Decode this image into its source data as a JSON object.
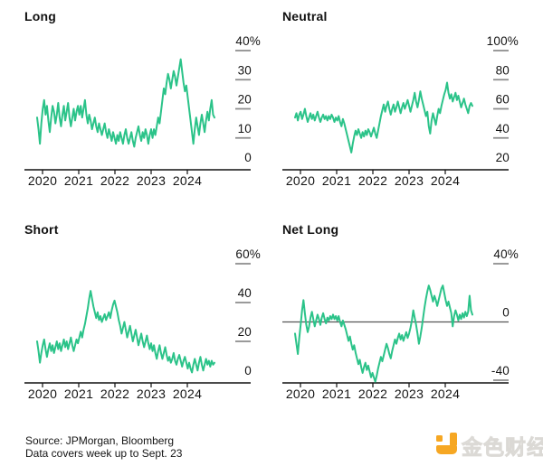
{
  "colors": {
    "line": "#2bc389",
    "axis": "#111111",
    "tick_dash": "#8c8c8c",
    "label": "#141414",
    "zero_line": "#555555",
    "logo_orange": "#F6A723",
    "logo_text_gray": "#ebe9e5",
    "background": "#ffffff"
  },
  "footer": {
    "line1": "Source: JPMorgan, Bloomberg",
    "line2": "Data covers week up to Sept. 23"
  },
  "logo": {
    "text": "金色财经",
    "icon": "jinse-blocks-icon"
  },
  "chart_data": [
    {
      "type": "line",
      "title": "Long",
      "x_tick_labels": [
        "2020",
        "2021",
        "2022",
        "2023",
        "2024"
      ],
      "x_range": [
        "Oct 2019",
        "Sep 2024"
      ],
      "y_tick_labels": [
        "40%",
        "30",
        "20",
        "10",
        "0"
      ],
      "y_tick_values": [
        40,
        30,
        20,
        10,
        0
      ],
      "y_tick_dashes": [
        true,
        true,
        true,
        true,
        false
      ],
      "ylim": [
        0,
        40
      ],
      "zero_line": false,
      "grid": false,
      "legend": "none",
      "values": [
        17,
        13,
        8,
        15,
        20,
        23,
        18,
        21,
        16,
        12,
        17,
        21,
        19,
        15,
        18,
        22,
        17,
        14,
        18,
        21,
        16,
        19,
        22,
        17,
        14,
        17,
        20,
        16,
        19,
        21,
        18,
        21,
        17,
        20,
        23,
        18,
        15,
        18,
        16,
        13,
        15,
        17,
        14,
        12,
        15,
        13,
        11,
        13,
        15,
        12,
        10,
        13,
        11,
        9,
        12,
        10,
        8,
        11,
        9,
        12,
        10,
        8,
        11,
        13,
        10,
        8,
        10,
        12,
        9,
        7,
        10,
        12,
        14,
        11,
        9,
        12,
        10,
        13,
        11,
        8,
        11,
        13,
        10,
        13,
        11,
        14,
        17,
        15,
        19,
        23,
        27,
        25,
        29,
        32,
        30,
        27,
        30,
        33,
        31,
        28,
        31,
        34,
        37,
        33,
        29,
        26,
        28,
        24,
        20,
        16,
        12,
        8,
        13,
        17,
        14,
        11,
        15,
        18,
        15,
        12,
        16,
        19,
        16,
        20,
        23,
        18,
        17
      ]
    },
    {
      "type": "line",
      "title": "Neutral",
      "x_tick_labels": [
        "2020",
        "2021",
        "2022",
        "2023",
        "2024"
      ],
      "x_range": [
        "Oct 2019",
        "Sep 2024"
      ],
      "y_tick_labels": [
        "100%",
        "80",
        "60",
        "40",
        "20"
      ],
      "y_tick_values": [
        100,
        80,
        60,
        40,
        20
      ],
      "y_tick_dashes": [
        true,
        true,
        true,
        true,
        false
      ],
      "ylim": [
        20,
        100
      ],
      "zero_line": false,
      "grid": false,
      "legend": "none",
      "values": [
        54,
        57,
        52,
        56,
        58,
        53,
        56,
        60,
        55,
        51,
        54,
        57,
        53,
        56,
        52,
        55,
        58,
        54,
        51,
        54,
        56,
        53,
        55,
        52,
        55,
        53,
        56,
        54,
        51,
        54,
        52,
        55,
        51,
        48,
        53,
        50,
        46,
        42,
        38,
        34,
        30,
        36,
        41,
        45,
        42,
        46,
        43,
        40,
        44,
        41,
        45,
        42,
        46,
        44,
        41,
        44,
        47,
        43,
        40,
        45,
        50,
        55,
        59,
        63,
        58,
        62,
        65,
        60,
        56,
        60,
        63,
        58,
        61,
        65,
        61,
        57,
        61,
        64,
        60,
        63,
        66,
        62,
        58,
        62,
        66,
        71,
        65,
        61,
        66,
        72,
        67,
        63,
        59,
        55,
        58,
        48,
        43,
        52,
        57,
        53,
        49,
        55,
        60,
        57,
        62,
        66,
        70,
        73,
        78,
        71,
        67,
        70,
        65,
        68,
        71,
        66,
        69,
        65,
        61,
        64,
        67,
        63,
        60,
        57,
        62,
        64,
        62
      ]
    },
    {
      "type": "line",
      "title": "Short",
      "x_tick_labels": [
        "2020",
        "2021",
        "2022",
        "2023",
        "2024"
      ],
      "x_range": [
        "Oct 2019",
        "Sep 2024"
      ],
      "y_tick_labels": [
        "60%",
        "40",
        "20",
        "0"
      ],
      "y_tick_values": [
        60,
        40,
        20,
        0
      ],
      "y_tick_dashes": [
        true,
        true,
        true,
        false
      ],
      "ylim": [
        0,
        60
      ],
      "zero_line": false,
      "grid": false,
      "legend": "none",
      "values": [
        20,
        15,
        9,
        14,
        18,
        21,
        16,
        12,
        16,
        19,
        15,
        18,
        14,
        17,
        20,
        16,
        19,
        15,
        18,
        21,
        17,
        20,
        16,
        19,
        22,
        18,
        15,
        18,
        21,
        19,
        22,
        25,
        22,
        26,
        29,
        33,
        37,
        42,
        46,
        42,
        38,
        35,
        32,
        35,
        31,
        33,
        30,
        32,
        34,
        31,
        33,
        35,
        32,
        36,
        39,
        41,
        38,
        35,
        31,
        28,
        24,
        27,
        30,
        26,
        22,
        25,
        28,
        24,
        20,
        23,
        26,
        22,
        18,
        21,
        24,
        20,
        17,
        20,
        23,
        19,
        16,
        19,
        15,
        18,
        14,
        11,
        15,
        18,
        14,
        11,
        14,
        17,
        13,
        10,
        12,
        9,
        11,
        14,
        10,
        8,
        11,
        13,
        10,
        7,
        10,
        12,
        9,
        6,
        9,
        6,
        4,
        8,
        11,
        8,
        5,
        9,
        12,
        8,
        5,
        8,
        11,
        8,
        10,
        7,
        10,
        8,
        9
      ]
    },
    {
      "type": "line",
      "title": "Net Long",
      "x_tick_labels": [
        "2020",
        "2021",
        "2022",
        "2023",
        "2024"
      ],
      "x_range": [
        "Oct 2019",
        "Sep 2024"
      ],
      "y_tick_labels": [
        "40%",
        "0",
        "-40"
      ],
      "y_tick_values": [
        40,
        0,
        -40
      ],
      "y_tick_dashes": [
        true,
        false,
        true
      ],
      "ylim": [
        -40,
        40
      ],
      "zero_line": true,
      "grid": false,
      "legend": "none",
      "values": [
        -8,
        -15,
        -22,
        -11,
        -2,
        8,
        15,
        6,
        -2,
        -7,
        -3,
        3,
        7,
        2,
        -3,
        1,
        5,
        2,
        -2,
        3,
        6,
        2,
        -1,
        3,
        1,
        4,
        2,
        5,
        2,
        4,
        1,
        4,
        0,
        -3,
        1,
        -2,
        -5,
        -9,
        -13,
        -10,
        -15,
        -19,
        -16,
        -21,
        -25,
        -29,
        -26,
        -31,
        -35,
        -31,
        -28,
        -33,
        -30,
        -34,
        -38,
        -35,
        -38,
        -41,
        -37,
        -32,
        -28,
        -24,
        -27,
        -23,
        -19,
        -15,
        -18,
        -22,
        -25,
        -20,
        -16,
        -12,
        -15,
        -11,
        -8,
        -12,
        -9,
        -13,
        -10,
        -7,
        -11,
        -8,
        -4,
        1,
        8,
        3,
        -2,
        -8,
        -15,
        -10,
        -4,
        3,
        10,
        16,
        21,
        25,
        22,
        18,
        14,
        18,
        15,
        11,
        15,
        19,
        23,
        25,
        20,
        15,
        11,
        14,
        10,
        6,
        -3,
        4,
        8,
        5,
        1,
        5,
        2,
        6,
        3,
        7,
        4,
        7,
        18,
        8,
        5
      ]
    }
  ]
}
